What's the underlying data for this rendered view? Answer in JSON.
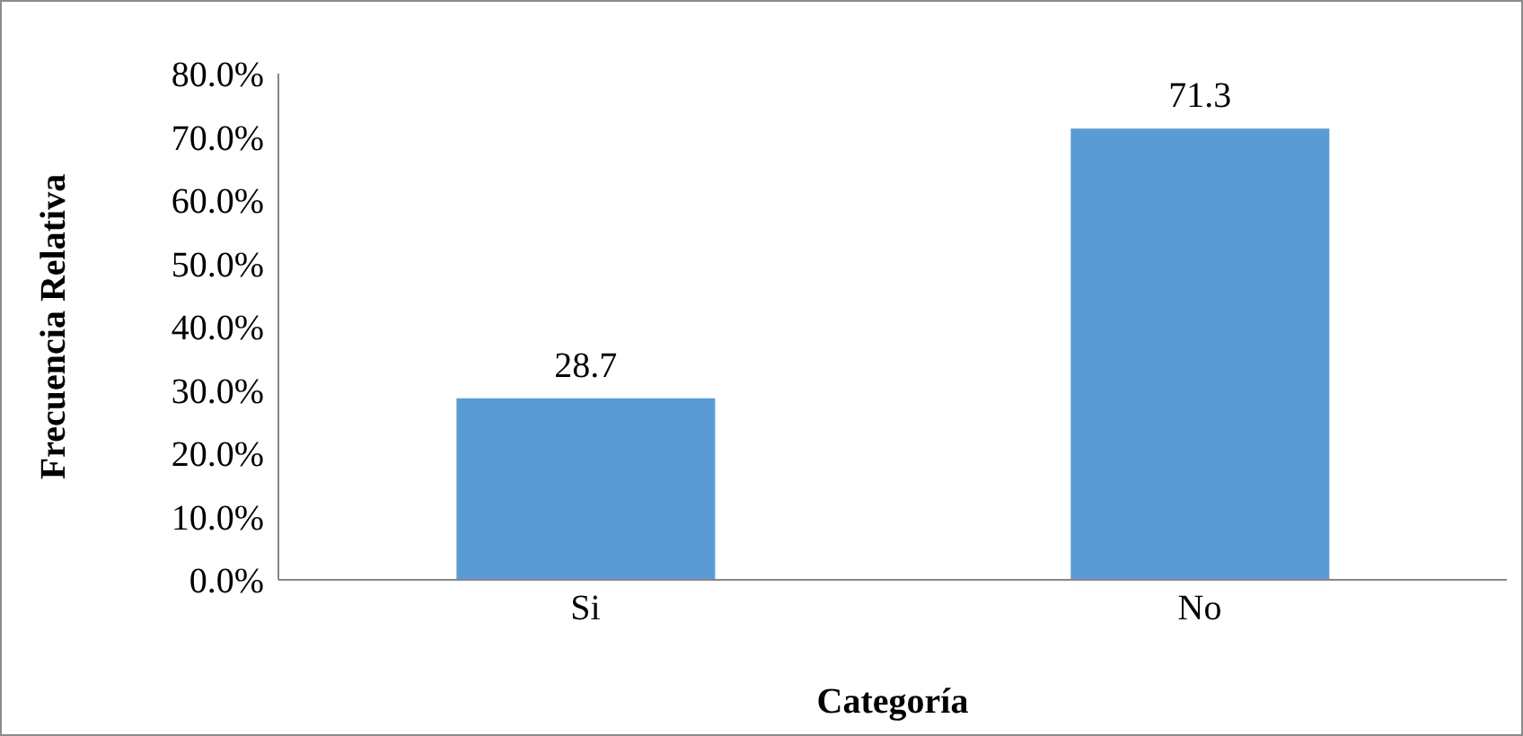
{
  "chart_data": {
    "type": "bar",
    "xlabel": "Categoría",
    "ylabel": "Frecuencia Relativa",
    "categories": [
      "Si",
      "No"
    ],
    "values": [
      28.7,
      71.3
    ],
    "color": "#5b9bd5",
    "ylim": [
      0,
      80
    ],
    "yticks": [
      {
        "value": 0,
        "label": "0.0%"
      },
      {
        "value": 10,
        "label": "10.0%"
      },
      {
        "value": 20,
        "label": "20.0%"
      },
      {
        "value": 30,
        "label": "30.0%"
      },
      {
        "value": 40,
        "label": "40.0%"
      },
      {
        "value": 50,
        "label": "50.0%"
      },
      {
        "value": 60,
        "label": "60.0%"
      },
      {
        "value": 70,
        "label": "70.0%"
      },
      {
        "value": 80,
        "label": "80.0%"
      }
    ],
    "data_labels": true,
    "grid": false
  }
}
